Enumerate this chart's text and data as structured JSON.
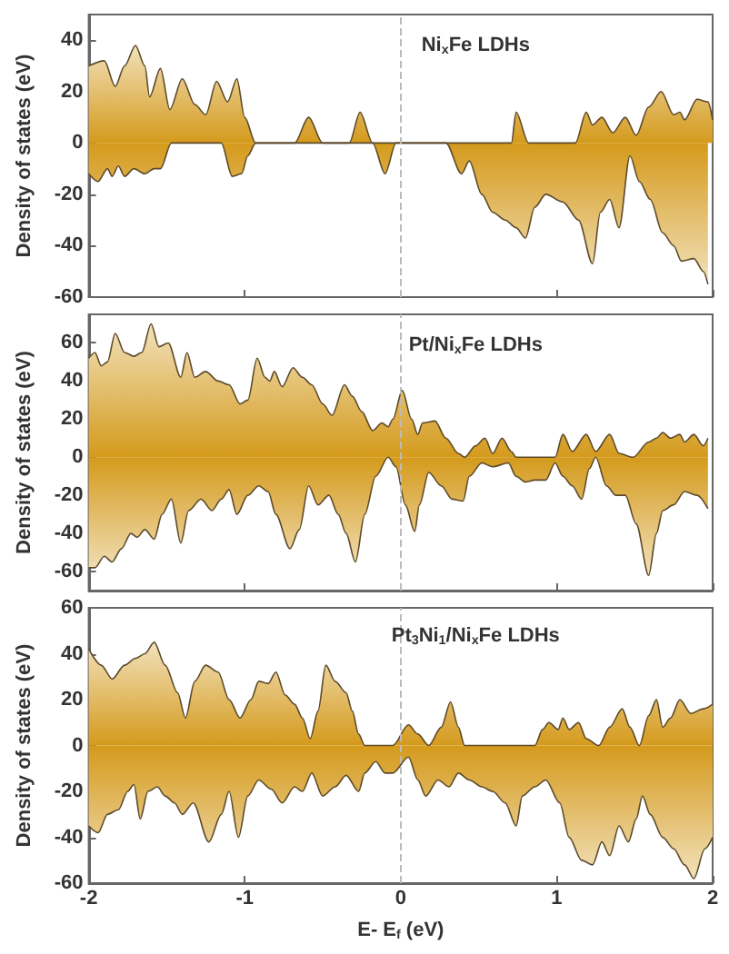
{
  "chart_data": [
    {
      "type": "area",
      "title": "Ni$_{x}$Fe LDHs",
      "ylabel": "Density of states (eV)",
      "xlim": [
        -2,
        2
      ],
      "xticks": [
        -2,
        -1,
        0,
        1,
        2
      ],
      "ylim": [
        -60,
        50
      ],
      "yticks": [
        -60,
        -40,
        -20,
        0,
        20,
        40
      ],
      "tick_labels": "y",
      "grid": false,
      "marker": "none",
      "ref_lines": [
        {
          "axis": "x",
          "value": 0,
          "color": "#bbbbbb",
          "line_style": "dashed"
        }
      ],
      "series": [
        {
          "color": "#d49a1c",
          "x": [
            -2.0,
            -1.9,
            -1.83,
            -1.77,
            -1.7,
            -1.64,
            -1.61,
            -1.54,
            -1.48,
            -1.4,
            -1.32,
            -1.25,
            -1.18,
            -1.11,
            -1.05,
            -1.0,
            -0.93,
            -0.68,
            -0.59,
            -0.5,
            -0.33,
            -0.26,
            -0.18,
            0.71,
            0.74,
            0.82,
            1.12,
            1.19,
            1.23,
            1.29,
            1.36,
            1.44,
            1.51,
            1.59,
            1.67,
            1.75,
            1.79,
            1.82,
            1.9,
            1.97,
            2.0
          ],
          "values": [
            30,
            32,
            22,
            30,
            38,
            30,
            18,
            29,
            13,
            25,
            15,
            11,
            24,
            16,
            25,
            10,
            0,
            0,
            10,
            0,
            0,
            12,
            0,
            0,
            12,
            0,
            0,
            12,
            7,
            10,
            4,
            10,
            3,
            14,
            20,
            11,
            12,
            9,
            17,
            16,
            9
          ]
        },
        {
          "color": "#d49a1c",
          "x": [
            -2.0,
            -1.94,
            -1.88,
            -1.85,
            -1.81,
            -1.77,
            -1.71,
            -1.64,
            -1.58,
            -1.54,
            -1.47,
            -1.15,
            -1.08,
            -1.02,
            -0.98,
            -0.93,
            -0.18,
            -0.1,
            -0.03,
            0.29,
            0.39,
            0.44,
            0.52,
            0.59,
            0.67,
            0.74,
            0.8,
            0.86,
            0.93,
            1.04,
            1.14,
            1.23,
            1.28,
            1.34,
            1.4,
            1.47,
            1.53,
            1.6,
            1.68,
            1.75,
            1.8,
            1.88,
            1.94,
            1.97
          ],
          "values": [
            -12,
            -15,
            -10,
            -13,
            -9,
            -13,
            -10,
            -12,
            -10,
            -10,
            0,
            0,
            -13,
            -12,
            -5,
            0,
            0,
            -12,
            0,
            0,
            -12,
            -7,
            -20,
            -27,
            -30,
            -33,
            -37,
            -25,
            -20,
            -23,
            -30,
            -47,
            -27,
            -22,
            -33,
            -5,
            -15,
            -22,
            -35,
            -40,
            -46,
            -45,
            -50,
            -55
          ]
        }
      ]
    },
    {
      "type": "area",
      "title": "Pt/Ni$_{x}$Fe LDHs",
      "ylabel": "Density of states (eV)",
      "xlim": [
        -2,
        2
      ],
      "xticks": [
        -2,
        -1,
        0,
        1,
        2
      ],
      "ylim": [
        -70,
        75
      ],
      "yticks": [
        -60,
        -40,
        -20,
        0,
        20,
        40,
        60
      ],
      "tick_labels": "y",
      "grid": false,
      "marker": "none",
      "ref_lines": [
        {
          "axis": "x",
          "value": 0,
          "color": "#bbbbbb",
          "line_style": "dashed"
        }
      ],
      "series": [
        {
          "color": "#d49a1c",
          "x": [
            -2.0,
            -1.96,
            -1.92,
            -1.88,
            -1.83,
            -1.77,
            -1.71,
            -1.66,
            -1.6,
            -1.55,
            -1.49,
            -1.41,
            -1.37,
            -1.32,
            -1.25,
            -1.17,
            -1.1,
            -1.03,
            -0.98,
            -0.92,
            -0.87,
            -0.84,
            -0.81,
            -0.76,
            -0.69,
            -0.63,
            -0.57,
            -0.5,
            -0.44,
            -0.36,
            -0.31,
            -0.25,
            -0.18,
            -0.12,
            -0.08,
            -0.05,
            0.01,
            0.07,
            0.11,
            0.14,
            0.22,
            0.29,
            0.37,
            0.41,
            0.48,
            0.54,
            0.59,
            0.65,
            0.71,
            0.74,
            0.99,
            1.04,
            1.1,
            1.19,
            1.25,
            1.34,
            1.4,
            1.49,
            1.59,
            1.64,
            1.68,
            1.73,
            1.79,
            1.82,
            1.88,
            1.94,
            1.97
          ],
          "values": [
            52,
            55,
            48,
            50,
            65,
            55,
            53,
            55,
            70,
            58,
            60,
            42,
            55,
            42,
            45,
            40,
            38,
            28,
            30,
            52,
            42,
            40,
            45,
            37,
            47,
            42,
            38,
            28,
            22,
            38,
            32,
            24,
            14,
            18,
            16,
            20,
            35,
            20,
            12,
            18,
            19,
            10,
            2,
            0,
            6,
            10,
            2,
            10,
            3,
            0,
            0,
            12,
            3,
            12,
            3,
            12,
            2,
            0,
            8,
            10,
            13,
            10,
            12,
            8,
            12,
            6,
            10
          ]
        },
        {
          "color": "#d49a1c",
          "x": [
            -2.0,
            -1.96,
            -1.9,
            -1.85,
            -1.79,
            -1.73,
            -1.69,
            -1.64,
            -1.58,
            -1.53,
            -1.47,
            -1.41,
            -1.36,
            -1.28,
            -1.21,
            -1.15,
            -1.1,
            -1.05,
            -0.98,
            -0.91,
            -0.85,
            -0.8,
            -0.71,
            -0.65,
            -0.59,
            -0.53,
            -0.46,
            -0.4,
            -0.35,
            -0.29,
            -0.23,
            -0.16,
            -0.08,
            -0.03,
            0.03,
            0.09,
            0.12,
            0.18,
            0.26,
            0.33,
            0.4,
            0.44,
            0.52,
            0.59,
            0.69,
            0.74,
            0.8,
            0.86,
            0.93,
            0.99,
            1.04,
            1.1,
            1.16,
            1.21,
            1.25,
            1.32,
            1.38,
            1.44,
            1.51,
            1.59,
            1.64,
            1.68,
            1.75,
            1.82,
            1.9,
            1.97
          ],
          "values": [
            -58,
            -58,
            -52,
            -55,
            -48,
            -40,
            -42,
            -38,
            -43,
            -30,
            -22,
            -45,
            -28,
            -22,
            -28,
            -22,
            -17,
            -30,
            -20,
            -15,
            -18,
            -30,
            -48,
            -38,
            -15,
            -25,
            -20,
            -30,
            -40,
            -55,
            -30,
            -10,
            0,
            -5,
            -25,
            -39,
            -25,
            -8,
            -15,
            -22,
            -23,
            -10,
            -3,
            -5,
            -3,
            -10,
            -13,
            -12,
            -12,
            -3,
            -10,
            -15,
            -22,
            -6,
            0,
            -15,
            -20,
            -20,
            -35,
            -62,
            -40,
            -28,
            -25,
            -18,
            -20,
            -27
          ]
        }
      ]
    },
    {
      "type": "area",
      "title": "Pt$_{3}$Ni$_{1}$/Ni$_{x}$Fe LDHs",
      "ylabel": "Density of states (eV)",
      "xlabel": "E- E$_{f}$ (eV)",
      "xlim": [
        -2,
        2
      ],
      "xticks": [
        -2,
        -1,
        0,
        1,
        2
      ],
      "ylim": [
        -60,
        60
      ],
      "yticks": [
        -60,
        -40,
        -20,
        0,
        20,
        40,
        60
      ],
      "grid": false,
      "marker": "none",
      "ref_lines": [
        {
          "axis": "x",
          "value": 0,
          "color": "#bbbbbb",
          "line_style": "dashed"
        }
      ],
      "series": [
        {
          "color": "#d49a1c",
          "x": [
            -2.0,
            -1.92,
            -1.85,
            -1.77,
            -1.7,
            -1.64,
            -1.58,
            -1.51,
            -1.43,
            -1.38,
            -1.32,
            -1.25,
            -1.17,
            -1.1,
            -1.03,
            -0.96,
            -0.91,
            -0.85,
            -0.8,
            -0.74,
            -0.68,
            -0.63,
            -0.58,
            -0.53,
            -0.48,
            -0.42,
            -0.35,
            -0.31,
            -0.27,
            -0.23,
            -0.05,
            0.05,
            0.11,
            0.18,
            0.26,
            0.32,
            0.37,
            0.41,
            0.86,
            0.91,
            0.95,
            1.01,
            1.04,
            1.08,
            1.14,
            1.19,
            1.27,
            1.34,
            1.42,
            1.47,
            1.53,
            1.59,
            1.64,
            1.68,
            1.73,
            1.79,
            1.86,
            1.94,
            2.0
          ],
          "values": [
            42,
            35,
            29,
            35,
            38,
            40,
            45,
            35,
            23,
            12,
            28,
            35,
            32,
            20,
            12,
            20,
            28,
            27,
            32,
            22,
            18,
            12,
            3,
            15,
            35,
            28,
            23,
            15,
            5,
            0,
            0,
            9,
            5,
            0,
            8,
            19,
            8,
            0,
            0,
            7,
            10,
            7,
            12,
            7,
            10,
            3,
            0,
            8,
            16,
            8,
            0,
            13,
            20,
            8,
            12,
            20,
            14,
            16,
            18
          ]
        },
        {
          "color": "#d49a1c",
          "x": [
            -2.0,
            -1.94,
            -1.88,
            -1.81,
            -1.75,
            -1.71,
            -1.67,
            -1.62,
            -1.56,
            -1.51,
            -1.45,
            -1.4,
            -1.33,
            -1.23,
            -1.15,
            -1.1,
            -1.04,
            -0.98,
            -0.91,
            -0.83,
            -0.76,
            -0.68,
            -0.63,
            -0.57,
            -0.5,
            -0.42,
            -0.35,
            -0.27,
            -0.23,
            -0.16,
            -0.1,
            -0.05,
            0.05,
            0.11,
            0.16,
            0.24,
            0.31,
            0.37,
            0.44,
            0.52,
            0.59,
            0.67,
            0.74,
            0.78,
            0.86,
            0.93,
            1.02,
            1.08,
            1.16,
            1.23,
            1.29,
            1.34,
            1.4,
            1.46,
            1.51,
            1.55,
            1.6,
            1.68,
            1.75,
            1.82,
            1.88,
            1.95,
            2.0
          ],
          "values": [
            -35,
            -38,
            -30,
            -28,
            -20,
            -17,
            -32,
            -20,
            -18,
            -22,
            -25,
            -30,
            -25,
            -42,
            -30,
            -20,
            -40,
            -22,
            -15,
            -19,
            -25,
            -18,
            -20,
            -12,
            -22,
            -18,
            -13,
            -20,
            -12,
            -7,
            -12,
            -12,
            -5,
            -15,
            -22,
            -15,
            -18,
            -12,
            -15,
            -18,
            -20,
            -25,
            -35,
            -22,
            -18,
            -15,
            -25,
            -40,
            -50,
            -52,
            -42,
            -48,
            -35,
            -42,
            -32,
            -22,
            -30,
            -40,
            -45,
            -52,
            -58,
            -45,
            -40
          ]
        }
      ]
    }
  ]
}
